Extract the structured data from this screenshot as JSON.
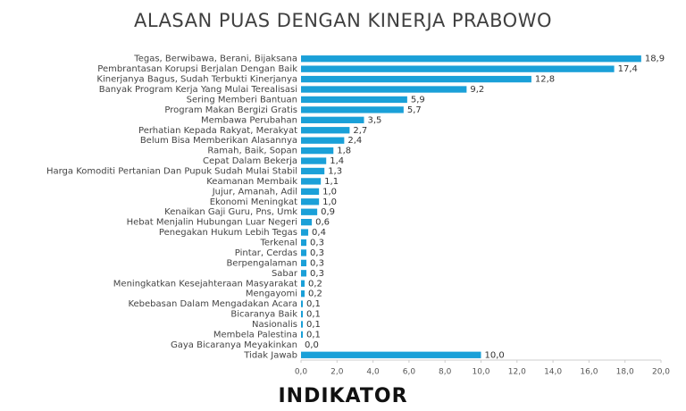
{
  "chart_data": {
    "type": "hbar",
    "title": "ALASAN PUAS DENGAN KINERJA PRABOWO",
    "categories": [
      "Tegas, Berwibawa, Berani, Bijaksana",
      "Pembrantasan Korupsi Berjalan Dengan Baik",
      "Kinerjanya Bagus, Sudah Terbukti Kinerjanya",
      "Banyak Program Kerja Yang Mulai Terealisasi",
      "Sering Memberi Bantuan",
      "Program Makan Bergizi Gratis",
      "Membawa Perubahan",
      "Perhatian Kepada Rakyat, Merakyat",
      "Belum Bisa Memberikan Alasannya",
      "Ramah, Baik, Sopan",
      "Cepat Dalam Bekerja",
      "Harga Komoditi Pertanian Dan Pupuk Sudah Mulai Stabil",
      "Keamanan Membaik",
      "Jujur, Amanah, Adil",
      "Ekonomi Meningkat",
      "Kenaikan Gaji Guru, Pns, Umk",
      "Hebat Menjalin Hubungan Luar Negeri",
      "Penegakan Hukum Lebih Tegas",
      "Terkenal",
      "Pintar, Cerdas",
      "Berpengalaman",
      "Sabar",
      "Meningkatkan Kesejahteraan Masyarakat",
      "Mengayomi",
      "Kebebasan Dalam Mengadakan Acara",
      "Bicaranya Baik",
      "Nasionalis",
      "Membela Palestina",
      "Gaya Bicaranya Meyakinkan",
      "Tidak Jawab"
    ],
    "values": [
      18.9,
      17.4,
      12.8,
      9.2,
      5.9,
      5.7,
      3.5,
      2.7,
      2.4,
      1.8,
      1.4,
      1.3,
      1.1,
      1.0,
      1.0,
      0.9,
      0.6,
      0.4,
      0.3,
      0.3,
      0.3,
      0.3,
      0.2,
      0.2,
      0.1,
      0.1,
      0.1,
      0.1,
      0.0,
      10.0
    ],
    "value_labels": [
      "18,9",
      "17,4",
      "12,8",
      "9,2",
      "5,9",
      "5,7",
      "3,5",
      "2,7",
      "2,4",
      "1,8",
      "1,4",
      "1,3",
      "1,1",
      "1,0",
      "1,0",
      "0,9",
      "0,6",
      "0,4",
      "0,3",
      "0,3",
      "0,3",
      "0,3",
      "0,2",
      "0,2",
      "0,1",
      "0,1",
      "0,1",
      "0,1",
      "0,0",
      "10,0"
    ],
    "color": "#1aa0d8",
    "xlim": [
      0,
      20
    ],
    "xticks": [
      {
        "value": 0,
        "label": "0,0"
      },
      {
        "value": 2,
        "label": "2,0"
      },
      {
        "value": 4,
        "label": "4,0"
      },
      {
        "value": 6,
        "label": "6,0"
      },
      {
        "value": 8,
        "label": "8,0"
      },
      {
        "value": 10,
        "label": "10,0"
      },
      {
        "value": 12,
        "label": "12,0"
      },
      {
        "value": 14,
        "label": "14,0"
      },
      {
        "value": 16,
        "label": "16,0"
      },
      {
        "value": 18,
        "label": "18,0"
      },
      {
        "value": 20,
        "label": "20,0"
      }
    ]
  },
  "brand": "INDIKATOR"
}
